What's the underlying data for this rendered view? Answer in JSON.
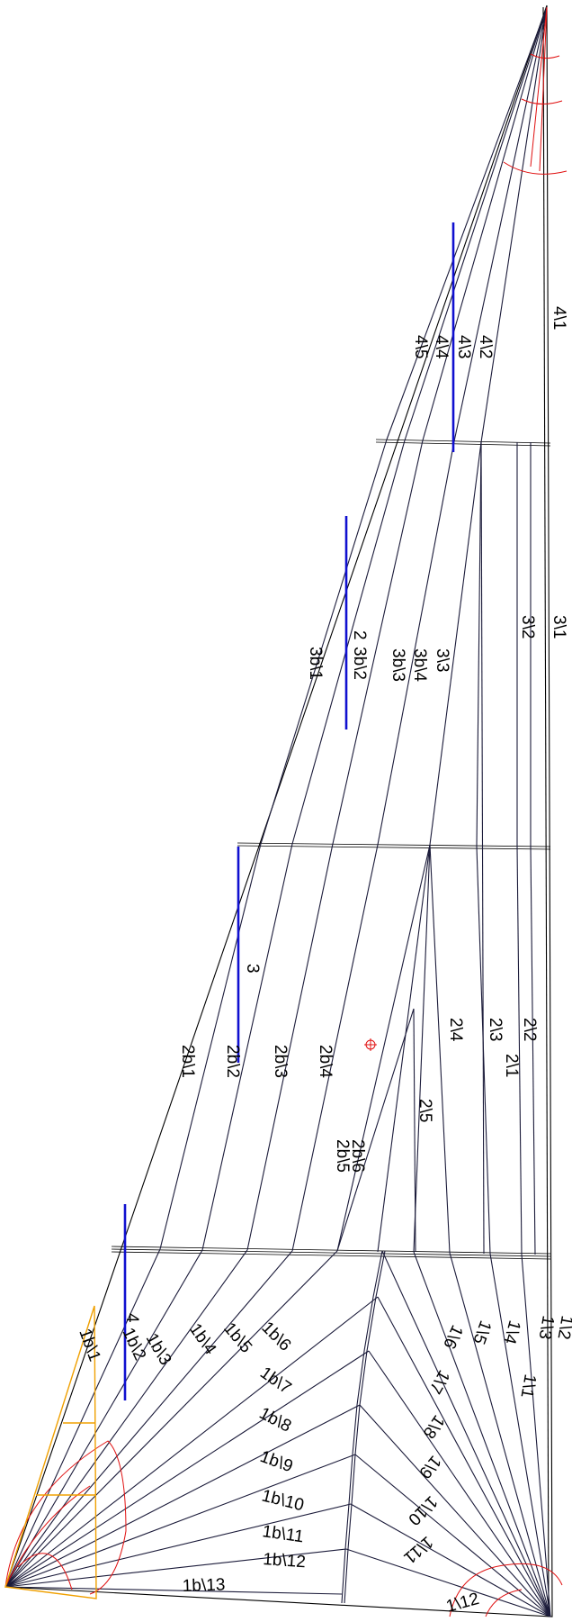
{
  "labels": {
    "l41": "4\\1",
    "l42": "4\\2",
    "l43": "4\\3",
    "l44": "4\\4",
    "l45": "4\\5",
    "l31": "3\\1",
    "l32": "3\\2",
    "l33": "3\\3",
    "l3b4": "3b\\4",
    "l3b3": "3b\\3",
    "l2": "2",
    "l3b2": "3b\\2",
    "l3b1": "3b\\1",
    "l3": "3",
    "l2b1": "2b\\1",
    "l2b2": "2b\\2",
    "l2b3": "2b\\3",
    "l2b4": "2b\\4",
    "l2b5": "2b\\5",
    "l2b6": "2b\\6",
    "l21": "2\\1",
    "l22": "2\\2",
    "l23": "2\\3",
    "l24": "2\\4",
    "l25": "2\\5",
    "l4": "4",
    "l1b1": "1b\\1",
    "l1b2": "1b\\2",
    "l1b3": "1b\\3",
    "l1b4": "1b\\4",
    "l1b5": "1b\\5",
    "l1b6": "1b\\6",
    "l1b7": "1b\\7",
    "l1b8": "1b\\8",
    "l1b9": "1b\\9",
    "l1b10": "1b\\10",
    "l1b11": "1b\\11",
    "l1b12": "1b\\12",
    "l1b13": "1b\\13",
    "l11": "1\\1",
    "l12": "1\\2",
    "l13": "1\\3",
    "l14": "1\\4",
    "l15": "1\\5",
    "l16": "1\\6",
    "l17": "1\\7",
    "l18": "1\\8",
    "l19": "1\\9",
    "l110": "1\\10",
    "l111": "1\\11",
    "l112": "1\\12"
  },
  "colors": {
    "outline": "#000000",
    "panel_seam": "#1b1b3a",
    "reinforcement": "#e01010",
    "head_patch": "#f0a000",
    "batten": "#1010d0"
  },
  "icons": {
    "center_marker": "crosshair-circle-icon"
  }
}
